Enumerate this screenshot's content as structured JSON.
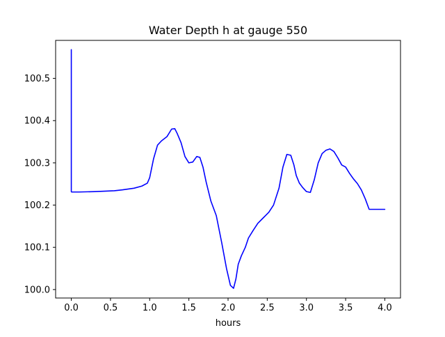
{
  "chart_data": {
    "type": "line",
    "title": "Water Depth h at gauge 550",
    "xlabel": "hours",
    "ylabel": "",
    "xlim": [
      -0.2,
      4.2
    ],
    "ylim": [
      99.98,
      100.59
    ],
    "xticks": [
      0.0,
      0.5,
      1.0,
      1.5,
      2.0,
      2.5,
      3.0,
      3.5,
      4.0
    ],
    "xtick_labels": [
      "0.0",
      "0.5",
      "1.0",
      "1.5",
      "2.0",
      "2.5",
      "3.0",
      "3.5",
      "4.0"
    ],
    "yticks": [
      100.0,
      100.1,
      100.2,
      100.3,
      100.4,
      100.5
    ],
    "ytick_labels": [
      "100.0",
      "100.1",
      "100.2",
      "100.3",
      "100.4",
      "100.5"
    ],
    "grid": false,
    "legend": "none",
    "series": [
      {
        "color": "#0000ff",
        "x": [
          0.0,
          0.0,
          0.003,
          0.1,
          0.3,
          0.55,
          0.65,
          0.8,
          0.9,
          0.97,
          1.0,
          1.05,
          1.1,
          1.15,
          1.22,
          1.28,
          1.32,
          1.35,
          1.4,
          1.45,
          1.5,
          1.55,
          1.6,
          1.64,
          1.68,
          1.72,
          1.78,
          1.85,
          1.92,
          1.98,
          2.03,
          2.07,
          2.1,
          2.13,
          2.17,
          2.22,
          2.26,
          2.32,
          2.38,
          2.45,
          2.52,
          2.58,
          2.65,
          2.7,
          2.75,
          2.8,
          2.84,
          2.87,
          2.91,
          2.95,
          3.0,
          3.05,
          3.1,
          3.15,
          3.2,
          3.25,
          3.3,
          3.35,
          3.4,
          3.45,
          3.5,
          3.55,
          3.6,
          3.65,
          3.7,
          3.75,
          3.8,
          3.85,
          3.9,
          3.95,
          4.0
        ],
        "y": [
          100.568,
          100.232,
          100.231,
          100.231,
          100.232,
          100.234,
          100.236,
          100.24,
          100.245,
          100.252,
          100.265,
          100.31,
          100.342,
          100.352,
          100.362,
          100.38,
          100.381,
          100.37,
          100.348,
          100.315,
          100.3,
          100.302,
          100.315,
          100.313,
          100.29,
          100.255,
          100.21,
          100.175,
          100.11,
          100.05,
          100.01,
          100.003,
          100.025,
          100.06,
          100.08,
          100.1,
          100.122,
          100.14,
          100.157,
          100.17,
          100.183,
          100.2,
          100.24,
          100.29,
          100.32,
          100.318,
          100.295,
          100.27,
          100.252,
          100.242,
          100.232,
          100.23,
          100.26,
          100.3,
          100.322,
          100.33,
          100.333,
          100.327,
          100.312,
          100.295,
          100.29,
          100.275,
          100.262,
          100.251,
          100.236,
          100.215,
          100.19,
          100.19,
          100.19,
          100.19,
          100.19
        ]
      }
    ]
  }
}
